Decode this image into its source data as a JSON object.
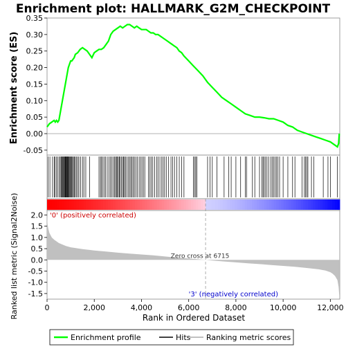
{
  "chart_data": [
    {
      "type": "line",
      "title": "Enrichment plot: HALLMARK_G2M_CHECKPOINT",
      "ylabel": "Enrichment score (ES)",
      "ylim": [
        -0.065,
        0.35
      ],
      "yticks": [
        "0.35",
        "0.30",
        "0.25",
        "0.20",
        "0.15",
        "0.10",
        "0.05",
        "0.00",
        "-0.05"
      ],
      "xlim": [
        0,
        12400
      ],
      "series": [
        {
          "name": "Enrichment profile",
          "color": "#00ff00",
          "x": [
            0,
            100,
            200,
            300,
            350,
            400,
            450,
            500,
            550,
            600,
            650,
            700,
            750,
            800,
            850,
            900,
            950,
            1000,
            1050,
            1100,
            1150,
            1200,
            1300,
            1400,
            1500,
            1600,
            1700,
            1800,
            1900,
            2000,
            2100,
            2200,
            2300,
            2400,
            2500,
            2600,
            2700,
            2800,
            2900,
            3000,
            3100,
            3200,
            3300,
            3400,
            3500,
            3600,
            3700,
            3800,
            3900,
            4000,
            4100,
            4200,
            4300,
            4400,
            4500,
            4600,
            4700,
            4800,
            4900,
            5000,
            5100,
            5200,
            5300,
            5400,
            5500,
            5600,
            5700,
            5800,
            6000,
            6200,
            6400,
            6600,
            6800,
            7000,
            7200,
            7400,
            7600,
            7800,
            8000,
            8200,
            8400,
            8600,
            8800,
            9000,
            9200,
            9400,
            9600,
            9800,
            10000,
            10200,
            10400,
            10600,
            10800,
            11000,
            11200,
            11400,
            11600,
            11800,
            12000,
            12100,
            12200,
            12300,
            12350,
            12380
          ],
          "y": [
            0.02,
            0.03,
            0.035,
            0.04,
            0.035,
            0.04,
            0.035,
            0.04,
            0.06,
            0.08,
            0.1,
            0.12,
            0.14,
            0.16,
            0.18,
            0.2,
            0.21,
            0.22,
            0.22,
            0.225,
            0.23,
            0.24,
            0.245,
            0.255,
            0.26,
            0.255,
            0.25,
            0.24,
            0.23,
            0.245,
            0.25,
            0.255,
            0.255,
            0.26,
            0.27,
            0.28,
            0.3,
            0.31,
            0.315,
            0.32,
            0.325,
            0.32,
            0.325,
            0.33,
            0.33,
            0.325,
            0.32,
            0.325,
            0.32,
            0.315,
            0.315,
            0.315,
            0.31,
            0.305,
            0.305,
            0.3,
            0.3,
            0.295,
            0.29,
            0.285,
            0.28,
            0.275,
            0.27,
            0.265,
            0.26,
            0.25,
            0.245,
            0.235,
            0.22,
            0.205,
            0.19,
            0.175,
            0.155,
            0.14,
            0.125,
            0.11,
            0.1,
            0.09,
            0.08,
            0.07,
            0.06,
            0.055,
            0.05,
            0.05,
            0.048,
            0.045,
            0.045,
            0.04,
            0.035,
            0.025,
            0.02,
            0.01,
            0.005,
            0.0,
            -0.005,
            -0.01,
            -0.015,
            -0.02,
            -0.025,
            -0.03,
            -0.035,
            -0.04,
            -0.03,
            0.0
          ]
        }
      ]
    },
    {
      "type": "line",
      "ylabel": "Ranked list metric (Signal2Noise)",
      "xlabel": "Rank in Ordered Dataset",
      "ylim": [
        -1.75,
        2.2
      ],
      "yticks": [
        "2.0",
        "1.5",
        "1.0",
        "0.5",
        "0.0",
        "-0.5",
        "-1.0",
        "-1.5"
      ],
      "xticks": [
        "0",
        "2,000",
        "4,000",
        "6,000",
        "8,000",
        "10,000",
        "12,000"
      ],
      "xlim": [
        0,
        12400
      ],
      "zero_cross_label": "Zero cross at 6715",
      "zero_cross": 6715,
      "pos_label": "'0' (positively correlated)",
      "neg_label": "'3' (negatively correlated)",
      "series": [
        {
          "name": "Ranking metric scores",
          "color": "#c0c0c0",
          "x": [
            0,
            20,
            50,
            100,
            200,
            300,
            500,
            800,
            1000,
            1500,
            2000,
            2500,
            3000,
            3500,
            4000,
            4500,
            5000,
            5500,
            6000,
            6500,
            6715,
            7000,
            7500,
            8000,
            8500,
            9000,
            9500,
            10000,
            10500,
            11000,
            11500,
            11800,
            12000,
            12100,
            12200,
            12300,
            12350,
            12380
          ],
          "y": [
            2.0,
            1.6,
            1.4,
            1.2,
            1.0,
            0.9,
            0.75,
            0.62,
            0.56,
            0.48,
            0.42,
            0.37,
            0.32,
            0.28,
            0.24,
            0.2,
            0.15,
            0.1,
            0.06,
            0.02,
            0.0,
            -0.03,
            -0.07,
            -0.11,
            -0.15,
            -0.19,
            -0.23,
            -0.27,
            -0.31,
            -0.36,
            -0.42,
            -0.48,
            -0.55,
            -0.62,
            -0.72,
            -0.9,
            -1.2,
            -1.6
          ]
        }
      ]
    }
  ],
  "hits": [
    40,
    120,
    230,
    300,
    330,
    400,
    450,
    520,
    560,
    600,
    630,
    660,
    690,
    720,
    745,
    770,
    790,
    810,
    830,
    855,
    880,
    900,
    930,
    960,
    990,
    1020,
    1050,
    1080,
    1120,
    1160,
    1200,
    1250,
    1300,
    1350,
    1420,
    1500,
    1560,
    1640,
    1800,
    2200,
    2260,
    2300,
    2360,
    2420,
    2480,
    2550,
    2620,
    2680,
    2740,
    2800,
    2860,
    2900,
    2940,
    2980,
    3020,
    3060,
    3100,
    3150,
    3200,
    3240,
    3280,
    3320,
    3380,
    3440,
    3500,
    3550,
    3600,
    3650,
    3700,
    3760,
    3820,
    3900,
    3960,
    4020,
    4080,
    4140,
    4300,
    4360,
    4420,
    4480,
    4560,
    4640,
    4700,
    4780,
    4860,
    4920,
    4980,
    5050,
    5150,
    5250,
    5320,
    5400,
    5500,
    5600,
    5700,
    5800,
    6200,
    6250,
    6300,
    6350,
    6800,
    6900,
    7000,
    7200,
    7500,
    7700,
    7800,
    8000,
    8200,
    8400,
    8450,
    8700,
    8800,
    9000,
    9100,
    9150,
    9200,
    9260,
    9320,
    9400,
    9480,
    9540,
    9600,
    9660,
    9720,
    9780,
    9850,
    10000,
    10200,
    10400,
    10500,
    10800,
    10900,
    10950,
    11000,
    11050,
    11200,
    11300,
    11700,
    11900,
    12000,
    12300
  ],
  "legend": [
    {
      "label": "Enrichment profile",
      "color": "#00ff00"
    },
    {
      "label": "Hits",
      "color": "#000000"
    },
    {
      "label": "Ranking metric scores",
      "color": "#c0c0c0"
    }
  ],
  "colors": {
    "positive": "#ff0000",
    "neutral_pos": "#ffd0e0",
    "neutral_neg": "#d0d0ff",
    "negative": "#0000ff",
    "profile": "#00ff00"
  }
}
